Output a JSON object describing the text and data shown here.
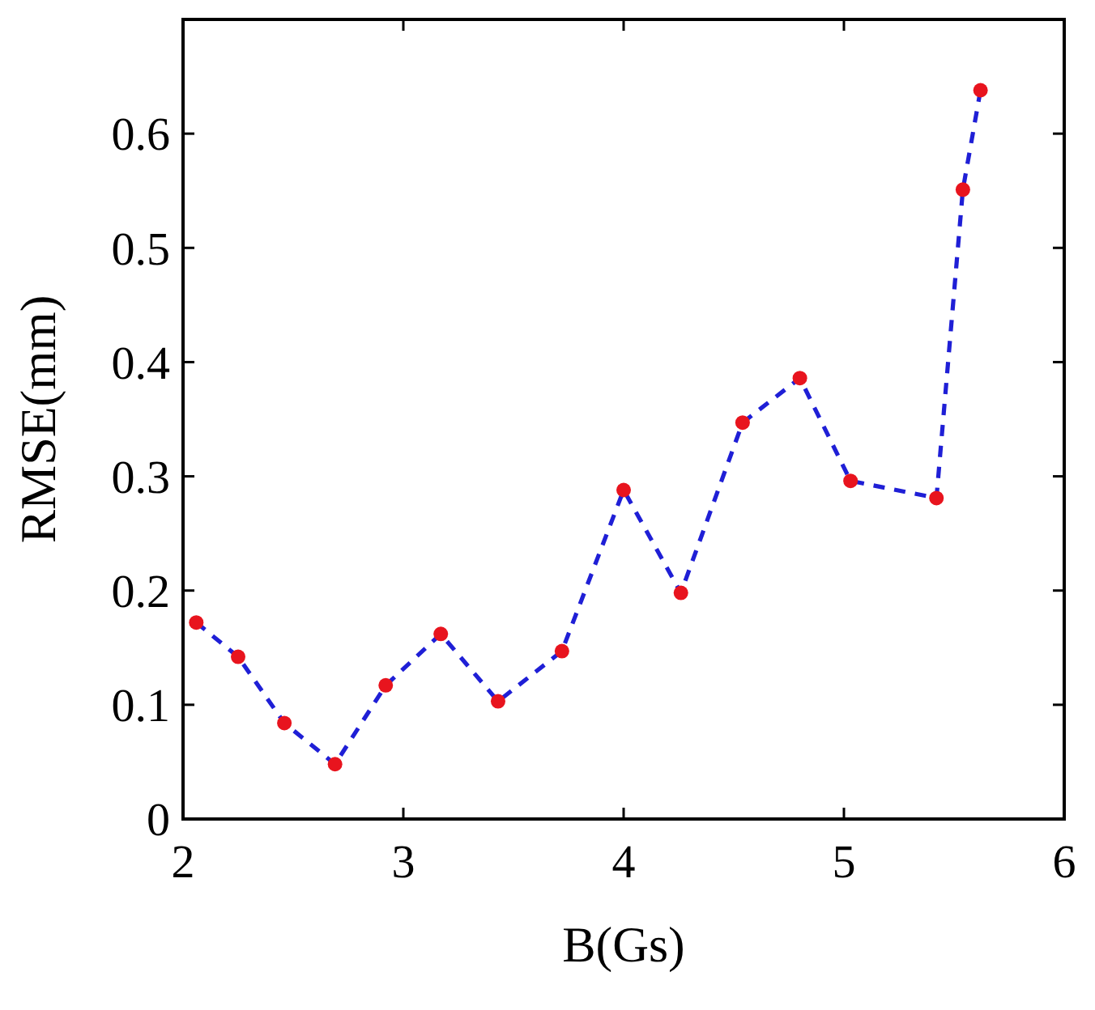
{
  "chart_data": {
    "type": "line",
    "xlabel": "B(Gs)",
    "ylabel": "RMSE(mm)",
    "x": [
      2.06,
      2.25,
      2.46,
      2.69,
      2.92,
      3.17,
      3.43,
      3.72,
      4.0,
      4.26,
      4.54,
      4.8,
      5.03,
      5.42,
      5.54,
      5.62
    ],
    "series": [
      {
        "color": "#1f1fd6",
        "values": [
          0.172,
          0.142,
          0.084,
          0.048,
          0.117,
          0.162,
          0.103,
          0.147,
          0.288,
          0.198,
          0.347,
          0.386,
          0.296,
          0.281,
          0.551,
          0.638
        ]
      }
    ],
    "xlim": [
      2,
      6
    ],
    "xticks": [
      2,
      3,
      4,
      5,
      6
    ],
    "ylim": [
      0,
      0.7
    ],
    "yticks": [
      0,
      0.1,
      0.2,
      0.3,
      0.4,
      0.5,
      0.6,
      {
        "value": 0.7,
        "label": null
      }
    ],
    "marker": "circle",
    "line_style": "dashed",
    "grid": false
  }
}
